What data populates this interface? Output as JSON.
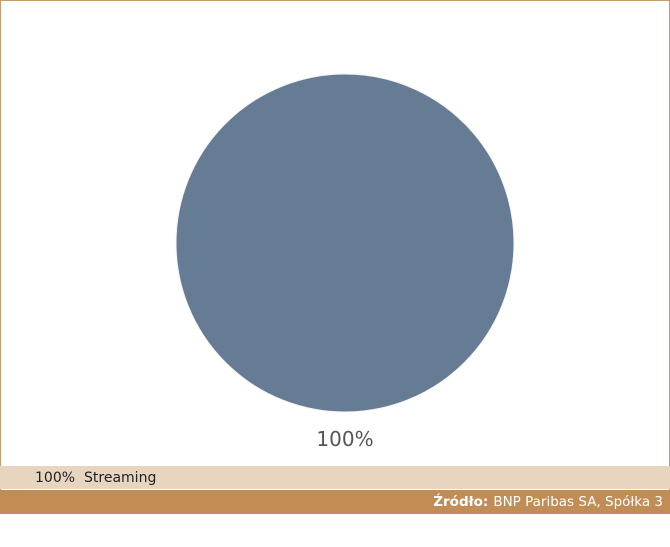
{
  "chart_data": {
    "type": "pie",
    "slices": [
      {
        "label": "Streaming",
        "value": 100,
        "display": "100%",
        "color": "#667c94"
      }
    ],
    "legend": [
      {
        "pct": "100%",
        "label": "Streaming"
      }
    ],
    "legend_position": "bottom"
  },
  "source": {
    "label": "Źródło:",
    "text": "BNP Paribas SA, Spółka 3"
  },
  "colors": {
    "frame": "#c59a6c",
    "legend_bg": "#e8d5c0",
    "source_bg": "#c28c55",
    "slice": "#667c94"
  }
}
